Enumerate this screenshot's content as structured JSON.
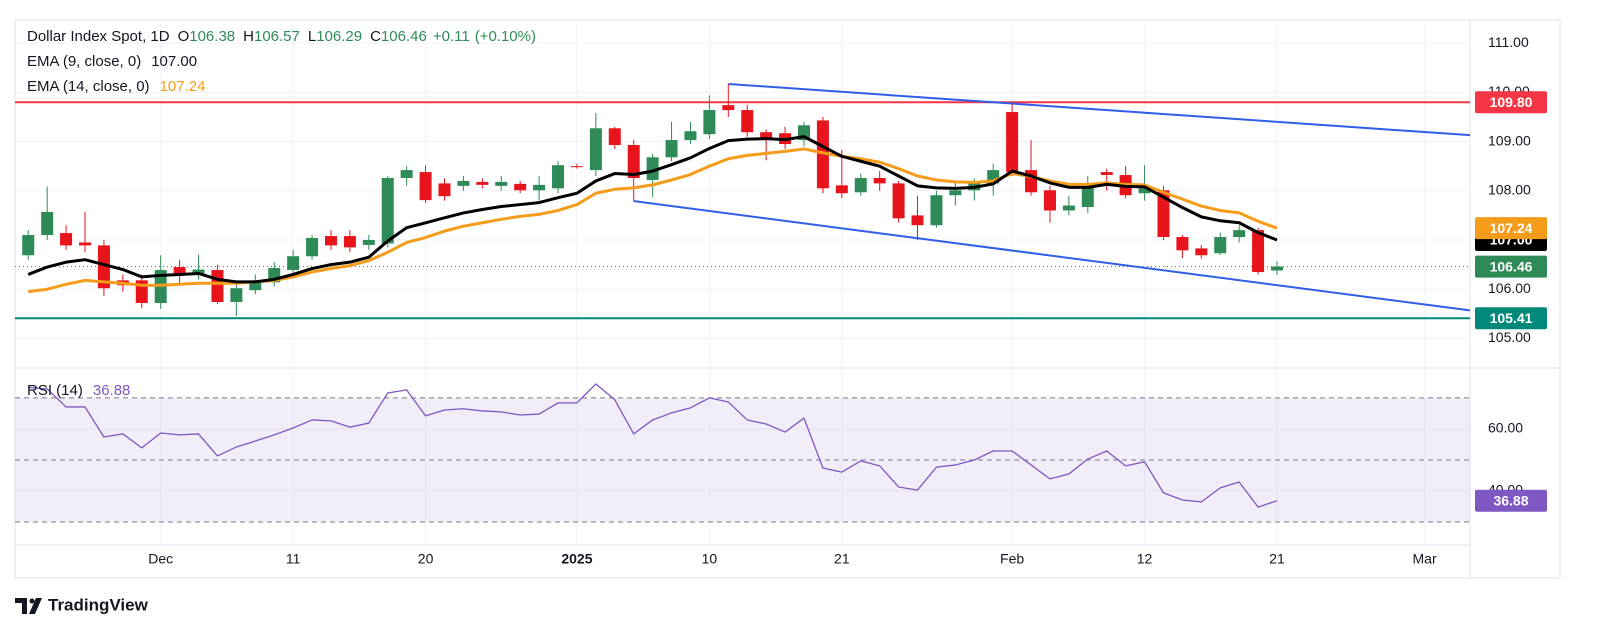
{
  "chart_data": [
    {
      "type": "candlestick",
      "title": "Dollar Index Spot, 1D",
      "ohlc_legend": [
        [
          "O",
          "106.38"
        ],
        [
          "H",
          "106.57"
        ],
        [
          "L",
          "106.29"
        ],
        [
          "C",
          "106.46"
        ]
      ],
      "change": "+0.11",
      "change_pct": "(+0.10%)",
      "up_color": "#2e8b57",
      "down_color": "#e8141c",
      "grid": true,
      "xlim": [
        -0.7,
        76.2
      ],
      "ylim": [
        104.46,
        111.47
      ],
      "yticks": [
        {
          "value": 105,
          "label": "105.00"
        },
        {
          "value": 106,
          "label": "106.00"
        },
        {
          "value": 107,
          "label": "107.00"
        },
        {
          "value": 108,
          "label": "108.00"
        },
        {
          "value": 109,
          "label": "109.00"
        },
        {
          "value": 110,
          "label": "110.00"
        },
        {
          "value": 111,
          "label": "111.00"
        }
      ],
      "open": [
        106.69,
        107.1,
        107.14,
        106.95,
        106.89,
        106.18,
        106.18,
        105.72,
        106.45,
        106.32,
        106.39,
        105.74,
        105.98,
        106.14,
        106.39,
        106.67,
        107.08,
        107.08,
        106.9,
        106.93,
        108.26,
        108.38,
        108.15,
        108.1,
        108.18,
        108.1,
        108.14,
        108.01,
        108.05,
        108.5,
        108.42,
        109.27,
        108.93,
        108.22,
        108.68,
        109.03,
        109.15,
        109.74,
        109.64,
        109.19,
        109.17,
        109.03,
        109.43,
        108.11,
        107.97,
        108.26,
        108.15,
        107.5,
        107.3,
        107.91,
        108.01,
        108.15,
        109.6,
        108.42,
        108.01,
        107.6,
        107.67,
        108.38,
        108.32,
        107.95,
        108.01,
        107.06,
        106.83,
        106.73,
        107.06,
        107.2,
        106.38
      ],
      "high": [
        107.2,
        108.09,
        107.3,
        107.57,
        107.0,
        106.3,
        106.3,
        106.69,
        106.6,
        106.7,
        106.5,
        106.1,
        106.3,
        106.55,
        106.8,
        107.1,
        107.2,
        107.2,
        107.1,
        108.3,
        108.5,
        108.52,
        108.25,
        108.3,
        108.25,
        108.3,
        108.2,
        108.3,
        108.6,
        108.55,
        109.58,
        109.3,
        109.03,
        108.75,
        109.4,
        109.4,
        109.94,
        110.17,
        109.75,
        109.25,
        109.3,
        109.4,
        109.5,
        108.83,
        108.35,
        108.4,
        108.2,
        107.9,
        108.0,
        108.2,
        108.25,
        108.55,
        109.76,
        109.03,
        108.1,
        107.9,
        108.3,
        108.45,
        108.5,
        108.52,
        108.1,
        107.1,
        106.9,
        107.15,
        107.3,
        107.25,
        106.57
      ],
      "low": [
        106.6,
        107.0,
        106.8,
        106.75,
        105.86,
        105.95,
        105.61,
        105.6,
        106.1,
        106.2,
        105.7,
        105.45,
        105.9,
        106.05,
        106.3,
        106.6,
        106.8,
        106.75,
        106.8,
        106.85,
        108.1,
        107.75,
        107.8,
        108.0,
        108.05,
        108.0,
        107.95,
        107.8,
        107.95,
        108.45,
        108.3,
        108.85,
        107.79,
        107.87,
        108.6,
        108.95,
        109.05,
        109.5,
        109.1,
        108.62,
        108.85,
        108.9,
        107.95,
        107.85,
        107.9,
        108.0,
        107.35,
        107.0,
        107.25,
        107.7,
        107.8,
        107.9,
        108.3,
        107.9,
        107.35,
        107.5,
        107.55,
        108.0,
        107.85,
        107.8,
        107.0,
        106.63,
        106.62,
        106.7,
        106.95,
        106.3,
        106.29
      ],
      "close": [
        107.1,
        107.57,
        106.89,
        106.89,
        106.02,
        106.08,
        105.72,
        106.39,
        106.32,
        106.4,
        105.74,
        106.02,
        106.18,
        106.43,
        106.67,
        107.04,
        106.89,
        106.85,
        107.0,
        108.26,
        108.42,
        107.81,
        107.89,
        108.2,
        108.12,
        108.18,
        108.01,
        108.12,
        108.52,
        108.48,
        109.27,
        108.93,
        108.26,
        108.68,
        109.03,
        109.21,
        109.64,
        109.64,
        109.19,
        109.07,
        108.95,
        109.33,
        108.05,
        107.95,
        108.26,
        108.15,
        107.44,
        107.3,
        107.91,
        108.01,
        108.15,
        108.42,
        108.38,
        107.97,
        107.6,
        107.7,
        108.07,
        108.32,
        107.91,
        108.05,
        107.06,
        106.79,
        106.69,
        107.06,
        107.2,
        106.35,
        106.46
      ],
      "series": [
        {
          "name": "EMA (9, close, 0)",
          "color": "#000000",
          "last_label": "107.00",
          "values": [
            106.3,
            106.45,
            106.55,
            106.6,
            106.5,
            106.4,
            106.25,
            106.28,
            106.3,
            106.32,
            106.2,
            106.15,
            106.15,
            106.2,
            106.3,
            106.42,
            106.5,
            106.55,
            106.65,
            106.98,
            107.25,
            107.35,
            107.45,
            107.55,
            107.62,
            107.68,
            107.72,
            107.76,
            107.86,
            107.95,
            108.2,
            108.35,
            108.33,
            108.4,
            108.53,
            108.67,
            108.86,
            109.02,
            109.05,
            109.06,
            109.04,
            109.1,
            108.9,
            108.7,
            108.6,
            108.5,
            108.3,
            108.1,
            108.06,
            108.05,
            108.07,
            108.14,
            108.4,
            108.3,
            108.16,
            108.07,
            108.07,
            108.13,
            108.09,
            108.08,
            107.87,
            107.66,
            107.47,
            107.39,
            107.35,
            107.15,
            107.0
          ]
        },
        {
          "name": "EMA (14, close, 0)",
          "color": "#f59c1a",
          "last_label": "107.24",
          "values": [
            105.95,
            106.0,
            106.1,
            106.18,
            106.15,
            106.12,
            106.08,
            106.08,
            106.1,
            106.12,
            106.12,
            106.12,
            106.15,
            106.18,
            106.25,
            106.35,
            106.42,
            106.48,
            106.58,
            106.75,
            106.95,
            107.05,
            107.18,
            107.28,
            107.35,
            107.42,
            107.48,
            107.52,
            107.6,
            107.72,
            107.95,
            108.03,
            108.06,
            108.12,
            108.22,
            108.33,
            108.5,
            108.65,
            108.72,
            108.76,
            108.8,
            108.85,
            108.77,
            108.7,
            108.65,
            108.58,
            108.45,
            108.3,
            108.22,
            108.18,
            108.17,
            108.2,
            108.35,
            108.29,
            108.2,
            108.13,
            108.13,
            108.16,
            108.13,
            108.12,
            107.97,
            107.83,
            107.69,
            107.6,
            107.55,
            107.38,
            107.24
          ]
        }
      ],
      "levels": [
        {
          "value": 109.8,
          "label": "109.80",
          "color": "#f23645"
        },
        {
          "value": 105.41,
          "label": "105.41",
          "color": "#00897b"
        }
      ],
      "trendlines": [
        {
          "color": "#2f5fe8",
          "x": [
            37,
            76.2
          ],
          "y": [
            110.17,
            109.13
          ]
        },
        {
          "color": "#2f5fe8",
          "x": [
            32,
            76.2
          ],
          "y": [
            107.79,
            105.57
          ]
        }
      ],
      "last_price_color": "#2e8b57"
    },
    {
      "type": "line",
      "name": "RSI (14)",
      "color": "#7e57c2",
      "grid": true,
      "ylim": [
        22.6,
        79
      ],
      "yticks": [
        {
          "value": 40,
          "label": "40.00"
        },
        {
          "value": 60,
          "label": "60.00"
        }
      ],
      "bands": [
        70,
        50,
        30
      ],
      "xticks": [
        {
          "value": 7,
          "label": "Dec"
        },
        {
          "value": 14,
          "label": "11"
        },
        {
          "value": 21,
          "label": "20"
        },
        {
          "value": 29,
          "label": "2025"
        },
        {
          "value": 36,
          "label": "10"
        },
        {
          "value": 43,
          "label": "21"
        },
        {
          "value": 52,
          "label": "Feb"
        },
        {
          "value": 59,
          "label": "12"
        },
        {
          "value": 66,
          "label": "21"
        },
        {
          "value": 73.8,
          "label": "Mar"
        }
      ],
      "values": [
        73.4,
        72.9,
        67.1,
        67.1,
        57.4,
        58.4,
        53.9,
        58.7,
        58.1,
        58.4,
        51.3,
        54.2,
        56.1,
        58.1,
        60.3,
        62.9,
        62.6,
        60.6,
        61.9,
        71.6,
        72.6,
        64.2,
        66.1,
        66.5,
        65.8,
        65.5,
        64.5,
        64.8,
        68.4,
        68.4,
        74.5,
        69.4,
        58.4,
        62.9,
        65.2,
        66.8,
        70.0,
        68.7,
        62.9,
        61.6,
        59.0,
        63.5,
        47.4,
        46.1,
        49.7,
        48.1,
        41.3,
        40.3,
        47.7,
        48.4,
        50.0,
        52.9,
        52.9,
        48.4,
        43.9,
        45.5,
        50.3,
        52.9,
        48.1,
        49.4,
        39.4,
        37.1,
        36.5,
        41.0,
        42.9,
        34.8,
        36.88
      ]
    }
  ],
  "brand": "TradingView"
}
